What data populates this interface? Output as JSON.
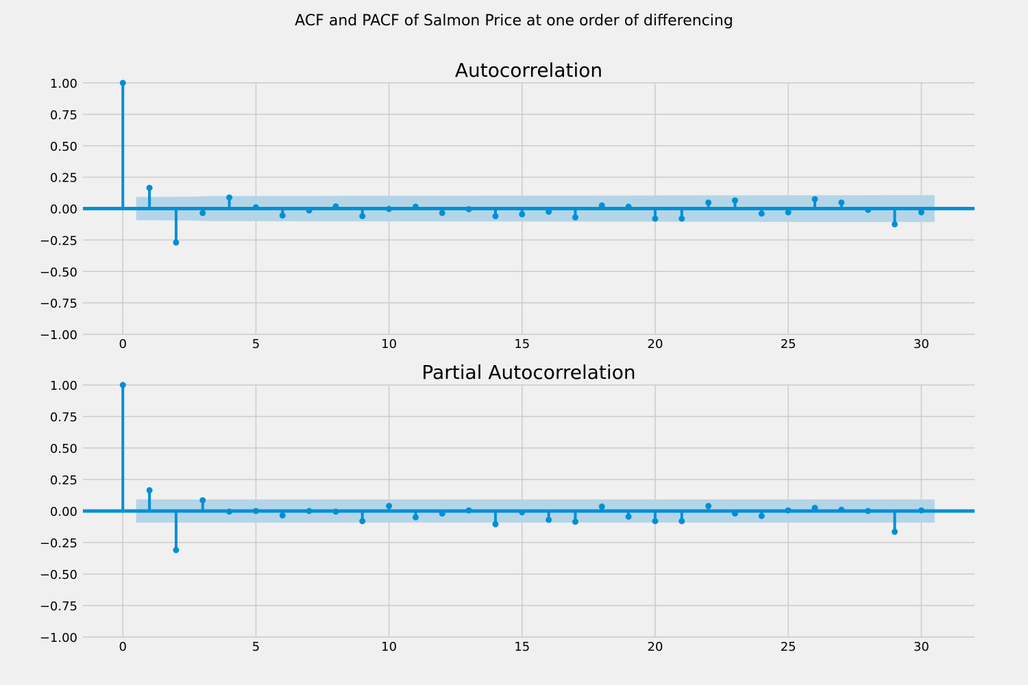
{
  "figure": {
    "suptitle": "ACF and PACF of Salmon Price at one order of differencing",
    "colors": {
      "background": "#f0f0f0",
      "grid": "#cbcbcb",
      "stem": "#008fd5",
      "confidence_band": "#b4d5e8"
    }
  },
  "chart_data": [
    {
      "type": "stem",
      "title": "Autocorrelation",
      "xlabel": "",
      "ylabel": "",
      "xlim": [
        -1.5,
        32
      ],
      "ylim": [
        -1.0,
        1.0
      ],
      "xticks": [
        0,
        5,
        10,
        15,
        20,
        25,
        30
      ],
      "xtick_labels": [
        "0",
        "5",
        "10",
        "15",
        "20",
        "25",
        "30"
      ],
      "yticks": [
        1.0,
        0.75,
        0.5,
        0.25,
        0.0,
        -0.25,
        -0.5,
        -0.75,
        -1.0
      ],
      "ytick_labels": [
        "1.00",
        "0.75",
        "0.50",
        "0.25",
        "0.00",
        "−0.25",
        "−0.50",
        "−0.75",
        "−1.00"
      ],
      "grid": true,
      "lags": [
        0,
        1,
        2,
        3,
        4,
        5,
        6,
        7,
        8,
        9,
        10,
        11,
        12,
        13,
        14,
        15,
        16,
        17,
        18,
        19,
        20,
        21,
        22,
        23,
        24,
        25,
        26,
        27,
        28,
        29,
        30
      ],
      "values": [
        1.0,
        0.165,
        -0.27,
        -0.035,
        0.088,
        0.01,
        -0.055,
        -0.015,
        0.018,
        -0.06,
        -0.003,
        0.015,
        -0.035,
        -0.005,
        -0.06,
        -0.045,
        -0.025,
        -0.07,
        0.025,
        0.015,
        -0.08,
        -0.08,
        0.048,
        0.065,
        -0.04,
        -0.03,
        0.075,
        0.048,
        -0.01,
        -0.125,
        -0.03
      ],
      "confidence_band": {
        "lags": [
          0.5,
          2.5,
          3.5,
          30.5
        ],
        "upper": [
          0.092,
          0.095,
          0.1,
          0.107
        ],
        "lower": [
          -0.092,
          -0.095,
          -0.1,
          -0.107
        ]
      }
    },
    {
      "type": "stem",
      "title": "Partial Autocorrelation",
      "xlabel": "",
      "ylabel": "",
      "xlim": [
        -1.5,
        32
      ],
      "ylim": [
        -1.0,
        1.0
      ],
      "xticks": [
        0,
        5,
        10,
        15,
        20,
        25,
        30
      ],
      "xtick_labels": [
        "0",
        "5",
        "10",
        "15",
        "20",
        "25",
        "30"
      ],
      "yticks": [
        1.0,
        0.75,
        0.5,
        0.25,
        0.0,
        -0.25,
        -0.5,
        -0.75,
        -1.0
      ],
      "ytick_labels": [
        "1.00",
        "0.75",
        "0.50",
        "0.25",
        "0.00",
        "−0.25",
        "−0.50",
        "−0.75",
        "−1.00"
      ],
      "grid": true,
      "lags": [
        0,
        1,
        2,
        3,
        4,
        5,
        6,
        7,
        8,
        9,
        10,
        11,
        12,
        13,
        14,
        15,
        16,
        17,
        18,
        19,
        20,
        21,
        22,
        23,
        24,
        25,
        26,
        27,
        28,
        29,
        30
      ],
      "values": [
        1.0,
        0.165,
        -0.31,
        0.085,
        -0.005,
        0.0,
        -0.035,
        0.0,
        -0.005,
        -0.08,
        0.04,
        -0.05,
        -0.02,
        0.005,
        -0.105,
        -0.01,
        -0.07,
        -0.085,
        0.035,
        -0.045,
        -0.08,
        -0.08,
        0.04,
        -0.02,
        -0.04,
        0.005,
        0.025,
        0.01,
        0.0,
        -0.165,
        0.005
      ],
      "confidence_band": {
        "lags": [
          0.5,
          30.5
        ],
        "upper": [
          0.092,
          0.092
        ],
        "lower": [
          -0.092,
          -0.092
        ]
      }
    }
  ]
}
